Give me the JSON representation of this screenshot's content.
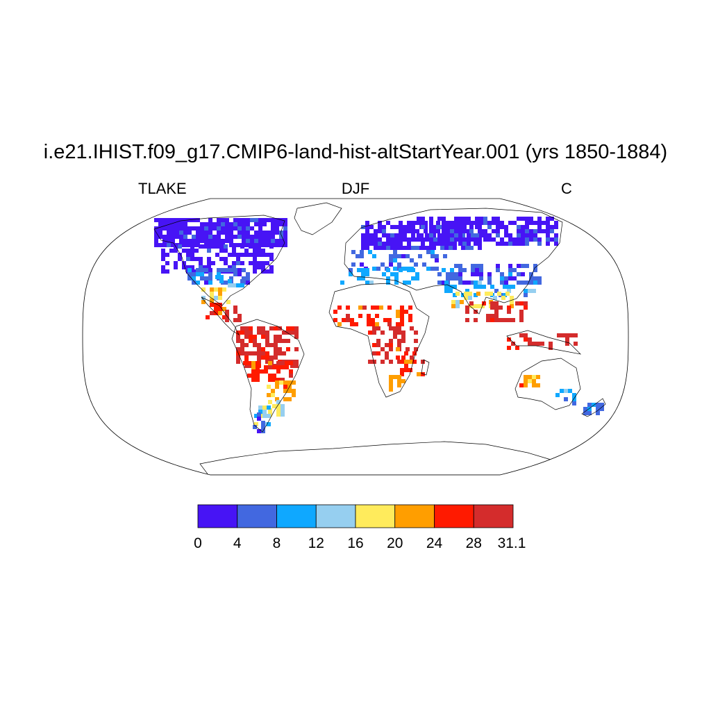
{
  "title": "i.e21.IHIST.f09_g17.CMIP6-land-hist-altStartYear.001 (yrs 1850-1884)",
  "subtitle_left": "TLAKE",
  "subtitle_center": "DJF",
  "subtitle_right": "C",
  "map": {
    "projection": "robinson",
    "background": "#ffffff",
    "coastline_color": "#000000"
  },
  "colorbar": {
    "orientation": "horizontal",
    "colors": [
      "#4714f5",
      "#4268e0",
      "#0fa8ff",
      "#96cff0",
      "#ffeb5c",
      "#ff9e00",
      "#ff1a00",
      "#d42c2c"
    ],
    "tick_labels": [
      "0",
      "4",
      "8",
      "12",
      "16",
      "20",
      "24",
      "28",
      "31.1"
    ]
  }
}
